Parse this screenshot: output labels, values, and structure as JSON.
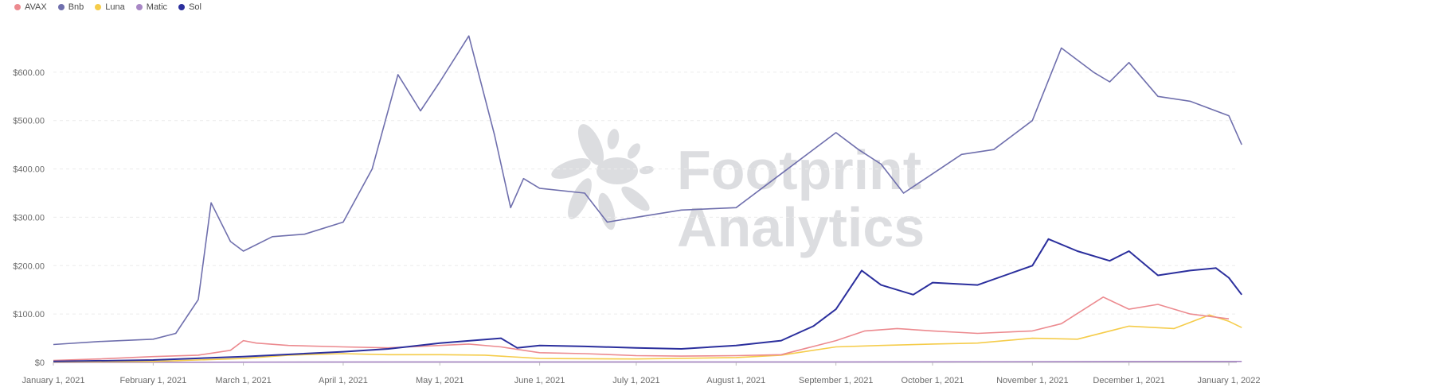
{
  "chart_data": {
    "type": "line",
    "title": "",
    "xlabel": "",
    "ylabel": "",
    "ylim": [
      0,
      700
    ],
    "yticks": [
      0,
      100,
      200,
      300,
      400,
      500,
      600
    ],
    "ytick_labels": [
      "$0",
      "$100.00",
      "$200.00",
      "$300.00",
      "$400.00",
      "$500.00",
      "$600.00"
    ],
    "xlim": [
      "2021-01-01",
      "2022-01-01"
    ],
    "xticks": [
      "2021-01-01",
      "2021-02-01",
      "2021-03-01",
      "2021-04-01",
      "2021-05-01",
      "2021-06-01",
      "2021-07-01",
      "2021-08-01",
      "2021-09-01",
      "2021-10-01",
      "2021-11-01",
      "2021-12-01",
      "2022-01-01"
    ],
    "xtick_labels": [
      "January 1, 2021",
      "February 1, 2021",
      "March 1, 2021",
      "April 1, 2021",
      "May 1, 2021",
      "June 1, 2021",
      "July 1, 2021",
      "August 1, 2021",
      "September 1, 2021",
      "October 1, 2021",
      "November 1, 2021",
      "December 1, 2021",
      "January 1, 2022"
    ],
    "grid": true,
    "legend_position": "top-left",
    "series": [
      {
        "name": "AVAX",
        "color": "#ec8a8f",
        "points": [
          [
            "2021-01-01",
            4
          ],
          [
            "2021-01-15",
            7
          ],
          [
            "2021-02-01",
            12
          ],
          [
            "2021-02-15",
            15
          ],
          [
            "2021-02-25",
            25
          ],
          [
            "2021-03-01",
            45
          ],
          [
            "2021-03-05",
            40
          ],
          [
            "2021-03-15",
            35
          ],
          [
            "2021-04-01",
            32
          ],
          [
            "2021-04-15",
            30
          ],
          [
            "2021-05-01",
            35
          ],
          [
            "2021-05-10",
            38
          ],
          [
            "2021-05-20",
            32
          ],
          [
            "2021-06-01",
            20
          ],
          [
            "2021-06-15",
            18
          ],
          [
            "2021-07-01",
            14
          ],
          [
            "2021-07-15",
            13
          ],
          [
            "2021-08-01",
            14
          ],
          [
            "2021-08-15",
            16
          ],
          [
            "2021-09-01",
            45
          ],
          [
            "2021-09-10",
            65
          ],
          [
            "2021-09-20",
            70
          ],
          [
            "2021-10-01",
            65
          ],
          [
            "2021-10-15",
            60
          ],
          [
            "2021-11-01",
            65
          ],
          [
            "2021-11-10",
            80
          ],
          [
            "2021-11-23",
            135
          ],
          [
            "2021-12-01",
            110
          ],
          [
            "2021-12-10",
            120
          ],
          [
            "2021-12-20",
            100
          ],
          [
            "2022-01-01",
            90
          ]
        ]
      },
      {
        "name": "Bnb",
        "color": "#6f6fad",
        "points": [
          [
            "2021-01-01",
            37
          ],
          [
            "2021-01-15",
            43
          ],
          [
            "2021-02-01",
            48
          ],
          [
            "2021-02-08",
            60
          ],
          [
            "2021-02-15",
            130
          ],
          [
            "2021-02-19",
            330
          ],
          [
            "2021-02-25",
            250
          ],
          [
            "2021-03-01",
            230
          ],
          [
            "2021-03-10",
            260
          ],
          [
            "2021-03-20",
            265
          ],
          [
            "2021-04-01",
            290
          ],
          [
            "2021-04-10",
            400
          ],
          [
            "2021-04-18",
            595
          ],
          [
            "2021-04-25",
            520
          ],
          [
            "2021-05-01",
            580
          ],
          [
            "2021-05-10",
            675
          ],
          [
            "2021-05-18",
            470
          ],
          [
            "2021-05-23",
            320
          ],
          [
            "2021-05-27",
            380
          ],
          [
            "2021-06-01",
            360
          ],
          [
            "2021-06-15",
            350
          ],
          [
            "2021-06-22",
            290
          ],
          [
            "2021-07-01",
            300
          ],
          [
            "2021-07-15",
            315
          ],
          [
            "2021-08-01",
            320
          ],
          [
            "2021-08-15",
            390
          ],
          [
            "2021-09-01",
            475
          ],
          [
            "2021-09-08",
            440
          ],
          [
            "2021-09-15",
            410
          ],
          [
            "2021-09-22",
            350
          ],
          [
            "2021-10-01",
            390
          ],
          [
            "2021-10-10",
            430
          ],
          [
            "2021-10-20",
            440
          ],
          [
            "2021-11-01",
            500
          ],
          [
            "2021-11-10",
            650
          ],
          [
            "2021-11-20",
            600
          ],
          [
            "2021-11-25",
            580
          ],
          [
            "2021-12-01",
            620
          ],
          [
            "2021-12-10",
            550
          ],
          [
            "2021-12-20",
            540
          ],
          [
            "2022-01-01",
            510
          ],
          [
            "2022-01-05",
            450
          ]
        ]
      },
      {
        "name": "Luna",
        "color": "#f5cc4a",
        "points": [
          [
            "2021-01-01",
            1
          ],
          [
            "2021-02-01",
            2
          ],
          [
            "2021-03-01",
            8
          ],
          [
            "2021-03-15",
            15
          ],
          [
            "2021-04-01",
            18
          ],
          [
            "2021-04-15",
            16
          ],
          [
            "2021-05-01",
            16
          ],
          [
            "2021-05-15",
            15
          ],
          [
            "2021-06-01",
            8
          ],
          [
            "2021-07-01",
            7
          ],
          [
            "2021-08-01",
            10
          ],
          [
            "2021-08-15",
            15
          ],
          [
            "2021-09-01",
            32
          ],
          [
            "2021-09-15",
            35
          ],
          [
            "2021-10-01",
            38
          ],
          [
            "2021-10-15",
            40
          ],
          [
            "2021-11-01",
            50
          ],
          [
            "2021-11-15",
            48
          ],
          [
            "2021-12-01",
            75
          ],
          [
            "2021-12-15",
            70
          ],
          [
            "2021-12-26",
            98
          ],
          [
            "2022-01-01",
            85
          ],
          [
            "2022-01-05",
            72
          ]
        ]
      },
      {
        "name": "Matic",
        "color": "#a887c5",
        "points": [
          [
            "2021-01-01",
            0
          ],
          [
            "2021-05-01",
            1
          ],
          [
            "2021-09-01",
            1
          ],
          [
            "2022-01-01",
            2
          ],
          [
            "2022-01-05",
            2
          ]
        ]
      },
      {
        "name": "Sol",
        "color": "#2b2f9d",
        "points": [
          [
            "2021-01-01",
            2
          ],
          [
            "2021-02-01",
            5
          ],
          [
            "2021-03-01",
            12
          ],
          [
            "2021-04-01",
            22
          ],
          [
            "2021-04-15",
            28
          ],
          [
            "2021-05-01",
            40
          ],
          [
            "2021-05-20",
            50
          ],
          [
            "2021-05-25",
            30
          ],
          [
            "2021-06-01",
            35
          ],
          [
            "2021-06-15",
            33
          ],
          [
            "2021-07-01",
            30
          ],
          [
            "2021-07-15",
            28
          ],
          [
            "2021-08-01",
            35
          ],
          [
            "2021-08-15",
            45
          ],
          [
            "2021-08-25",
            75
          ],
          [
            "2021-09-01",
            110
          ],
          [
            "2021-09-09",
            190
          ],
          [
            "2021-09-15",
            160
          ],
          [
            "2021-09-25",
            140
          ],
          [
            "2021-10-01",
            165
          ],
          [
            "2021-10-15",
            160
          ],
          [
            "2021-11-01",
            200
          ],
          [
            "2021-11-06",
            255
          ],
          [
            "2021-11-15",
            230
          ],
          [
            "2021-11-25",
            210
          ],
          [
            "2021-12-01",
            230
          ],
          [
            "2021-12-10",
            180
          ],
          [
            "2021-12-20",
            190
          ],
          [
            "2021-12-28",
            195
          ],
          [
            "2022-01-01",
            175
          ],
          [
            "2022-01-05",
            140
          ]
        ]
      }
    ]
  }
}
